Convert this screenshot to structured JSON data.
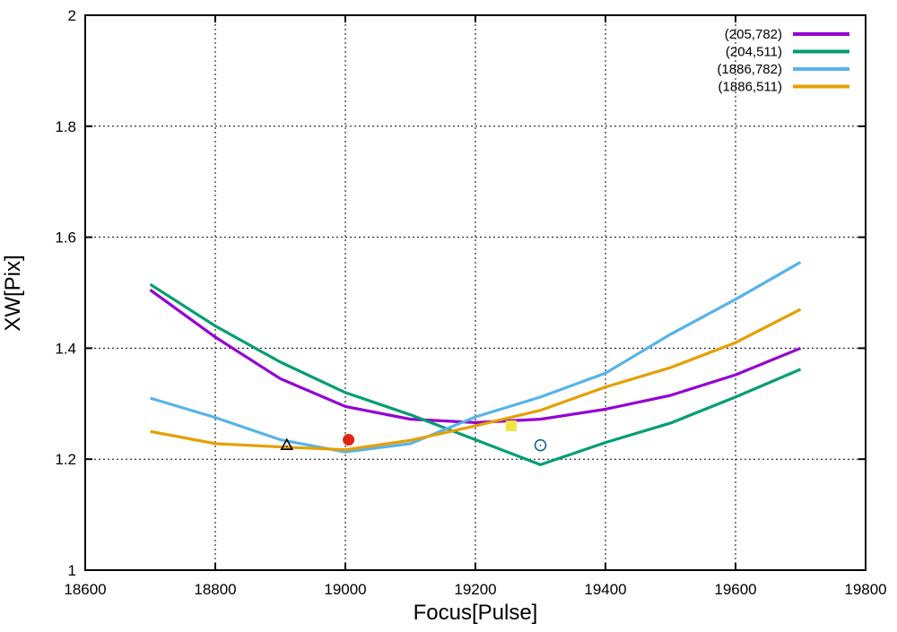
{
  "chart_data": {
    "type": "line",
    "title": "",
    "xlabel": "Focus[Pulse]",
    "ylabel": "XW[Pix]",
    "xlim": [
      18600,
      19800
    ],
    "ylim": [
      1,
      2
    ],
    "xticks": [
      18600,
      18800,
      19000,
      19200,
      19400,
      19600,
      19800
    ],
    "yticks": [
      1,
      1.2,
      1.4,
      1.6,
      1.8,
      2
    ],
    "grid": true,
    "legend_position": "top-right-inside",
    "x": [
      18700,
      18800,
      18900,
      19000,
      19100,
      19200,
      19300,
      19400,
      19500,
      19600,
      19700
    ],
    "series": [
      {
        "name": "(205,782)",
        "color": "#9400d3",
        "values": [
          1.505,
          1.42,
          1.345,
          1.295,
          1.272,
          1.266,
          1.272,
          1.29,
          1.315,
          1.352,
          1.4
        ]
      },
      {
        "name": "(204,511)",
        "color": "#009e73",
        "values": [
          1.515,
          1.44,
          1.375,
          1.32,
          1.28,
          1.235,
          1.19,
          1.23,
          1.265,
          1.312,
          1.362
        ]
      },
      {
        "name": "(1886,782)",
        "color": "#56b4e9",
        "values": [
          1.31,
          1.275,
          1.235,
          1.213,
          1.228,
          1.276,
          1.312,
          1.355,
          1.425,
          1.488,
          1.555
        ]
      },
      {
        "name": "(1886,511)",
        "color": "#e69f00",
        "values": [
          1.25,
          1.228,
          1.222,
          1.217,
          1.234,
          1.26,
          1.288,
          1.33,
          1.365,
          1.41,
          1.47
        ]
      }
    ],
    "markers": [
      {
        "shape": "triangle-open",
        "color": "#000000",
        "x": 18910,
        "y": 1.225
      },
      {
        "shape": "circle-filled",
        "color": "#e02514",
        "x": 19005,
        "y": 1.235
      },
      {
        "shape": "square-filled",
        "color": "#f0e442",
        "x": 19255,
        "y": 1.26
      },
      {
        "shape": "circle-open",
        "color": "#17688f",
        "x": 19300,
        "y": 1.225
      }
    ],
    "styles": {
      "grid_color": "#000000",
      "border_color": "#000000",
      "line_width": 3.2
    }
  }
}
